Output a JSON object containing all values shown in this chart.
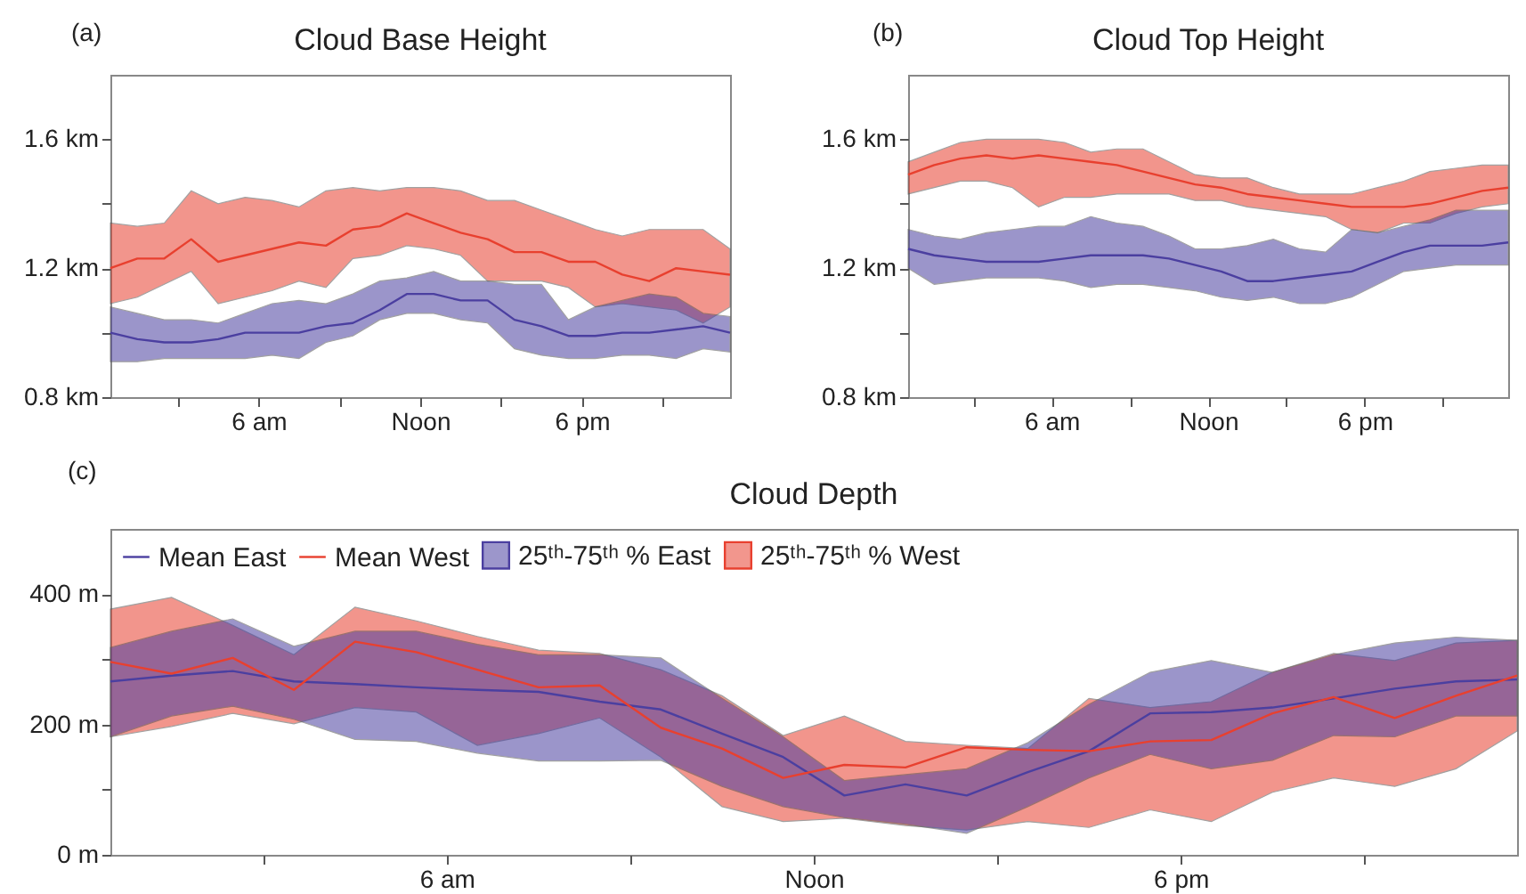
{
  "chart_data": [
    {
      "type": "line",
      "title": "Cloud Base Height",
      "annotations": [
        "(a)"
      ],
      "x": [
        "--01-01T00:30",
        "--01-01T01:30",
        "--01-01T02:30",
        "--01-01T03:30",
        "--01-01T04:30",
        "--01-01T05:30",
        "--01-01T06:30",
        "--01-01T07:30",
        "--01-01T08:30",
        "--01-01T09:30",
        "--01-01T10:30",
        "--01-01T11:30",
        "--01-01T12:30",
        "--01-01T13:30",
        "--01-01T14:30",
        "--01-01T15:30",
        "--01-01T16:30",
        "--01-01T17:30",
        "--01-01T18:30",
        "--01-01T19:30",
        "--01-01T20:30",
        "--01-01T21:30",
        "--01-01T22:30",
        "--01-01T23:30"
      ],
      "xlim": [
        "--01-01T00:30",
        "--01-01T23:30"
      ],
      "ylim": [
        0.8,
        1.8
      ],
      "xticks": [
        {
          "value": "--01-01T03:00",
          "label": null
        },
        {
          "value": "--01-01T06:00",
          "label": "6 am"
        },
        {
          "value": "--01-01T09:00",
          "label": null
        },
        {
          "value": "--01-01T12:00",
          "label": "Noon"
        },
        {
          "value": "--01-01T15:00",
          "label": null
        },
        {
          "value": "--01-01T18:00",
          "label": "6 pm"
        },
        {
          "value": "--01-01T21:00",
          "label": null
        }
      ],
      "yticks": [
        {
          "value": 0.8,
          "label": "0.8 km"
        },
        {
          "value": 1.0,
          "label": null
        },
        {
          "value": 1.2,
          "label": "1.2 km"
        },
        {
          "value": 1.4,
          "label": null
        },
        {
          "value": 1.6,
          "label": "1.6 km"
        }
      ],
      "grid": false,
      "legend": false,
      "series": [
        {
          "color": "#4b3fa0",
          "values": [
            1.0,
            0.98,
            0.97,
            0.97,
            0.98,
            1.0,
            1.0,
            1.0,
            1.02,
            1.03,
            1.07,
            1.12,
            1.12,
            1.1,
            1.1,
            1.04,
            1.02,
            0.99,
            0.99,
            1.0,
            1.0,
            1.01,
            1.02,
            1.0
          ],
          "lower": [
            0.91,
            0.91,
            0.92,
            0.92,
            0.92,
            0.92,
            0.93,
            0.92,
            0.97,
            0.99,
            1.04,
            1.06,
            1.06,
            1.04,
            1.03,
            0.95,
            0.93,
            0.92,
            0.92,
            0.93,
            0.93,
            0.92,
            0.95,
            0.94
          ],
          "upper": [
            1.08,
            1.06,
            1.04,
            1.04,
            1.03,
            1.06,
            1.09,
            1.1,
            1.09,
            1.12,
            1.16,
            1.17,
            1.19,
            1.16,
            1.16,
            1.15,
            1.15,
            1.04,
            1.08,
            1.1,
            1.12,
            1.11,
            1.06,
            1.05
          ]
        },
        {
          "color": "#e8402f",
          "values": [
            1.2,
            1.23,
            1.23,
            1.29,
            1.22,
            1.24,
            1.26,
            1.28,
            1.27,
            1.32,
            1.33,
            1.37,
            1.34,
            1.31,
            1.29,
            1.25,
            1.25,
            1.22,
            1.22,
            1.18,
            1.16,
            1.2,
            1.19,
            1.18
          ],
          "lower": [
            1.09,
            1.11,
            1.15,
            1.19,
            1.09,
            1.11,
            1.13,
            1.16,
            1.14,
            1.23,
            1.24,
            1.27,
            1.26,
            1.24,
            1.16,
            1.16,
            1.16,
            1.14,
            1.08,
            1.09,
            1.08,
            1.07,
            1.03,
            1.08
          ],
          "upper": [
            1.34,
            1.33,
            1.34,
            1.44,
            1.4,
            1.42,
            1.41,
            1.39,
            1.44,
            1.45,
            1.44,
            1.45,
            1.45,
            1.44,
            1.41,
            1.41,
            1.38,
            1.35,
            1.32,
            1.3,
            1.32,
            1.32,
            1.32,
            1.26
          ]
        }
      ]
    },
    {
      "type": "line",
      "title": "Cloud Top Height",
      "annotations": [
        "(b)"
      ],
      "x": [
        "--01-01T00:30",
        "--01-01T01:30",
        "--01-01T02:30",
        "--01-01T03:30",
        "--01-01T04:30",
        "--01-01T05:30",
        "--01-01T06:30",
        "--01-01T07:30",
        "--01-01T08:30",
        "--01-01T09:30",
        "--01-01T10:30",
        "--01-01T11:30",
        "--01-01T12:30",
        "--01-01T13:30",
        "--01-01T14:30",
        "--01-01T15:30",
        "--01-01T16:30",
        "--01-01T17:30",
        "--01-01T18:30",
        "--01-01T19:30",
        "--01-01T20:30",
        "--01-01T21:30",
        "--01-01T22:30",
        "--01-01T23:30"
      ],
      "xlim": [
        "--01-01T00:30",
        "--01-01T23:30"
      ],
      "ylim": [
        0.8,
        1.8
      ],
      "xticks": [
        {
          "value": "--01-01T03:00",
          "label": null
        },
        {
          "value": "--01-01T06:00",
          "label": "6 am"
        },
        {
          "value": "--01-01T09:00",
          "label": null
        },
        {
          "value": "--01-01T12:00",
          "label": "Noon"
        },
        {
          "value": "--01-01T15:00",
          "label": null
        },
        {
          "value": "--01-01T18:00",
          "label": "6 pm"
        },
        {
          "value": "--01-01T21:00",
          "label": null
        }
      ],
      "yticks": [
        {
          "value": 0.8,
          "label": "0.8 km"
        },
        {
          "value": 1.0,
          "label": null
        },
        {
          "value": 1.2,
          "label": "1.2 km"
        },
        {
          "value": 1.4,
          "label": null
        },
        {
          "value": 1.6,
          "label": "1.6 km"
        }
      ],
      "grid": false,
      "legend": false,
      "series": [
        {
          "color": "#4b3fa0",
          "values": [
            1.26,
            1.24,
            1.23,
            1.22,
            1.22,
            1.22,
            1.23,
            1.24,
            1.24,
            1.24,
            1.23,
            1.21,
            1.19,
            1.16,
            1.16,
            1.17,
            1.18,
            1.19,
            1.22,
            1.25,
            1.27,
            1.27,
            1.27,
            1.28
          ],
          "lower": [
            1.2,
            1.15,
            1.16,
            1.17,
            1.17,
            1.17,
            1.16,
            1.14,
            1.15,
            1.15,
            1.14,
            1.13,
            1.11,
            1.1,
            1.11,
            1.09,
            1.09,
            1.11,
            1.15,
            1.19,
            1.2,
            1.21,
            1.21,
            1.21
          ],
          "upper": [
            1.32,
            1.3,
            1.29,
            1.31,
            1.32,
            1.33,
            1.33,
            1.36,
            1.34,
            1.33,
            1.3,
            1.26,
            1.26,
            1.27,
            1.29,
            1.26,
            1.25,
            1.32,
            1.31,
            1.33,
            1.35,
            1.38,
            1.38,
            1.38
          ]
        },
        {
          "color": "#e8402f",
          "values": [
            1.49,
            1.52,
            1.54,
            1.55,
            1.54,
            1.55,
            1.54,
            1.53,
            1.52,
            1.5,
            1.48,
            1.46,
            1.45,
            1.43,
            1.42,
            1.41,
            1.4,
            1.39,
            1.39,
            1.39,
            1.4,
            1.42,
            1.44,
            1.45
          ],
          "lower": [
            1.43,
            1.45,
            1.47,
            1.47,
            1.45,
            1.39,
            1.42,
            1.42,
            1.43,
            1.43,
            1.43,
            1.41,
            1.41,
            1.39,
            1.38,
            1.37,
            1.36,
            1.32,
            1.31,
            1.34,
            1.34,
            1.37,
            1.39,
            1.4
          ],
          "upper": [
            1.53,
            1.56,
            1.59,
            1.6,
            1.6,
            1.6,
            1.59,
            1.56,
            1.57,
            1.57,
            1.53,
            1.49,
            1.48,
            1.48,
            1.45,
            1.43,
            1.43,
            1.43,
            1.45,
            1.47,
            1.5,
            1.51,
            1.52,
            1.52
          ]
        }
      ]
    },
    {
      "type": "line",
      "title": "Cloud Depth",
      "annotations": [
        "(c)",
        "25ᵗʰ-75ᵗʰ % East",
        "25ᵗʰ-75ᵗʰ % West"
      ],
      "x": [
        "--01-01T00:30",
        "--01-01T01:30",
        "--01-01T02:30",
        "--01-01T03:30",
        "--01-01T04:30",
        "--01-01T05:30",
        "--01-01T06:30",
        "--01-01T07:30",
        "--01-01T08:30",
        "--01-01T09:30",
        "--01-01T10:30",
        "--01-01T11:30",
        "--01-01T12:30",
        "--01-01T13:30",
        "--01-01T14:30",
        "--01-01T15:30",
        "--01-01T16:30",
        "--01-01T17:30",
        "--01-01T18:30",
        "--01-01T19:30",
        "--01-01T20:30",
        "--01-01T21:30",
        "--01-01T22:30",
        "--01-01T23:30"
      ],
      "xlim": [
        "--01-01T00:30",
        "--01-01T23:30"
      ],
      "ylim": [
        0,
        500
      ],
      "xticks": [
        {
          "value": "--01-01T03:00",
          "label": null
        },
        {
          "value": "--01-01T06:00",
          "label": "6 am"
        },
        {
          "value": "--01-01T09:00",
          "label": null
        },
        {
          "value": "--01-01T12:00",
          "label": "Noon"
        },
        {
          "value": "--01-01T15:00",
          "label": null
        },
        {
          "value": "--01-01T18:00",
          "label": "6 pm"
        },
        {
          "value": "--01-01T21:00",
          "label": null
        }
      ],
      "yticks": [
        {
          "value": 0,
          "label": "0 m"
        },
        {
          "value": 100,
          "label": null
        },
        {
          "value": 200,
          "label": "200 m"
        },
        {
          "value": 300,
          "label": null
        },
        {
          "value": 400,
          "label": "400 m"
        }
      ],
      "grid": false,
      "legend": "top left",
      "series": [
        {
          "name": "Mean East",
          "color": "#4b3fa0",
          "values": [
            266,
            275,
            282,
            266,
            262,
            257,
            253,
            250,
            235,
            223,
            186,
            150,
            91,
            108,
            91,
            127,
            159,
            217,
            219,
            226,
            240,
            255,
            266,
            269
          ],
          "lower": [
            181,
            213,
            228,
            208,
            177,
            174,
            156,
            144,
            144,
            145,
            105,
            74,
            57,
            47,
            33,
            74,
            118,
            154,
            132,
            145,
            183,
            181,
            213,
            213
          ],
          "upper": [
            318,
            343,
            362,
            320,
            343,
            343,
            323,
            307,
            307,
            302,
            240,
            181,
            114,
            123,
            132,
            172,
            231,
            280,
            298,
            280,
            307,
            325,
            334,
            329
          ]
        },
        {
          "name": "Mean West",
          "color": "#e8402f",
          "values": [
            296,
            278,
            302,
            253,
            327,
            311,
            284,
            257,
            260,
            195,
            163,
            118,
            138,
            134,
            165,
            161,
            159,
            174,
            176,
            217,
            242,
            210,
            244,
            275
          ],
          "lower": [
            181,
            197,
            217,
            201,
            226,
            219,
            168,
            186,
            210,
            150,
            74,
            51,
            56,
            45,
            38,
            51,
            42,
            69,
            51,
            96,
            118,
            105,
            132,
            190
          ],
          "upper": [
            377,
            395,
            352,
            307,
            380,
            359,
            335,
            314,
            309,
            284,
            244,
            183,
            213,
            174,
            168,
            163,
            240,
            226,
            235,
            280,
            309,
            298,
            325,
            329
          ]
        }
      ]
    }
  ]
}
